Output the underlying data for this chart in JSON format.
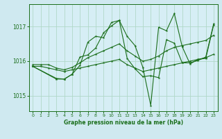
{
  "title": "Graphe pression niveau de la mer (hPa)",
  "background_color": "#cfe9f0",
  "plot_bg_color": "#d6eef5",
  "grid_color": "#b0d8c8",
  "line_color": "#1a6e1a",
  "xlim": [
    -0.5,
    23.5
  ],
  "ylim": [
    1014.55,
    1017.65
  ],
  "yticks": [
    1015,
    1016,
    1017
  ],
  "xticks": [
    0,
    1,
    2,
    3,
    4,
    5,
    6,
    7,
    8,
    9,
    10,
    11,
    12,
    13,
    14,
    15,
    16,
    17,
    18,
    19,
    20,
    21,
    22,
    23
  ],
  "series": [
    [
      1015.85,
      1015.85,
      1015.8,
      1015.75,
      1015.7,
      1015.75,
      1015.8,
      1015.85,
      1015.9,
      1015.95,
      1016.0,
      1016.05,
      1015.9,
      1015.8,
      1015.7,
      1015.75,
      1015.8,
      1015.85,
      1015.9,
      1015.95,
      1016.0,
      1016.05,
      1016.1,
      1016.2
    ],
    [
      1015.9,
      1015.9,
      1015.9,
      1015.8,
      1015.75,
      1015.82,
      1015.95,
      1016.1,
      1016.2,
      1016.3,
      1016.4,
      1016.5,
      1016.3,
      1016.15,
      1016.0,
      1016.05,
      1016.15,
      1016.3,
      1016.4,
      1016.45,
      1016.5,
      1016.55,
      1016.6,
      1016.75
    ],
    [
      1015.85,
      null,
      null,
      1015.5,
      1015.48,
      1015.62,
      1015.88,
      1016.55,
      1016.72,
      1016.68,
      1017.12,
      1017.18,
      1016.72,
      1016.45,
      1015.82,
      1014.72,
      1016.98,
      1016.88,
      1017.38,
      1016.42,
      1015.92,
      1016.05,
      1016.08,
      1017.05
    ],
    [
      1015.85,
      null,
      null,
      1015.48,
      1015.48,
      1015.62,
      1016.12,
      1016.18,
      1016.38,
      1016.82,
      1017.02,
      1017.18,
      1016.08,
      1015.78,
      1015.55,
      1015.58,
      1015.52,
      1016.62,
      1016.52,
      1015.95,
      1015.95,
      1016.02,
      1016.12,
      1017.08
    ]
  ]
}
